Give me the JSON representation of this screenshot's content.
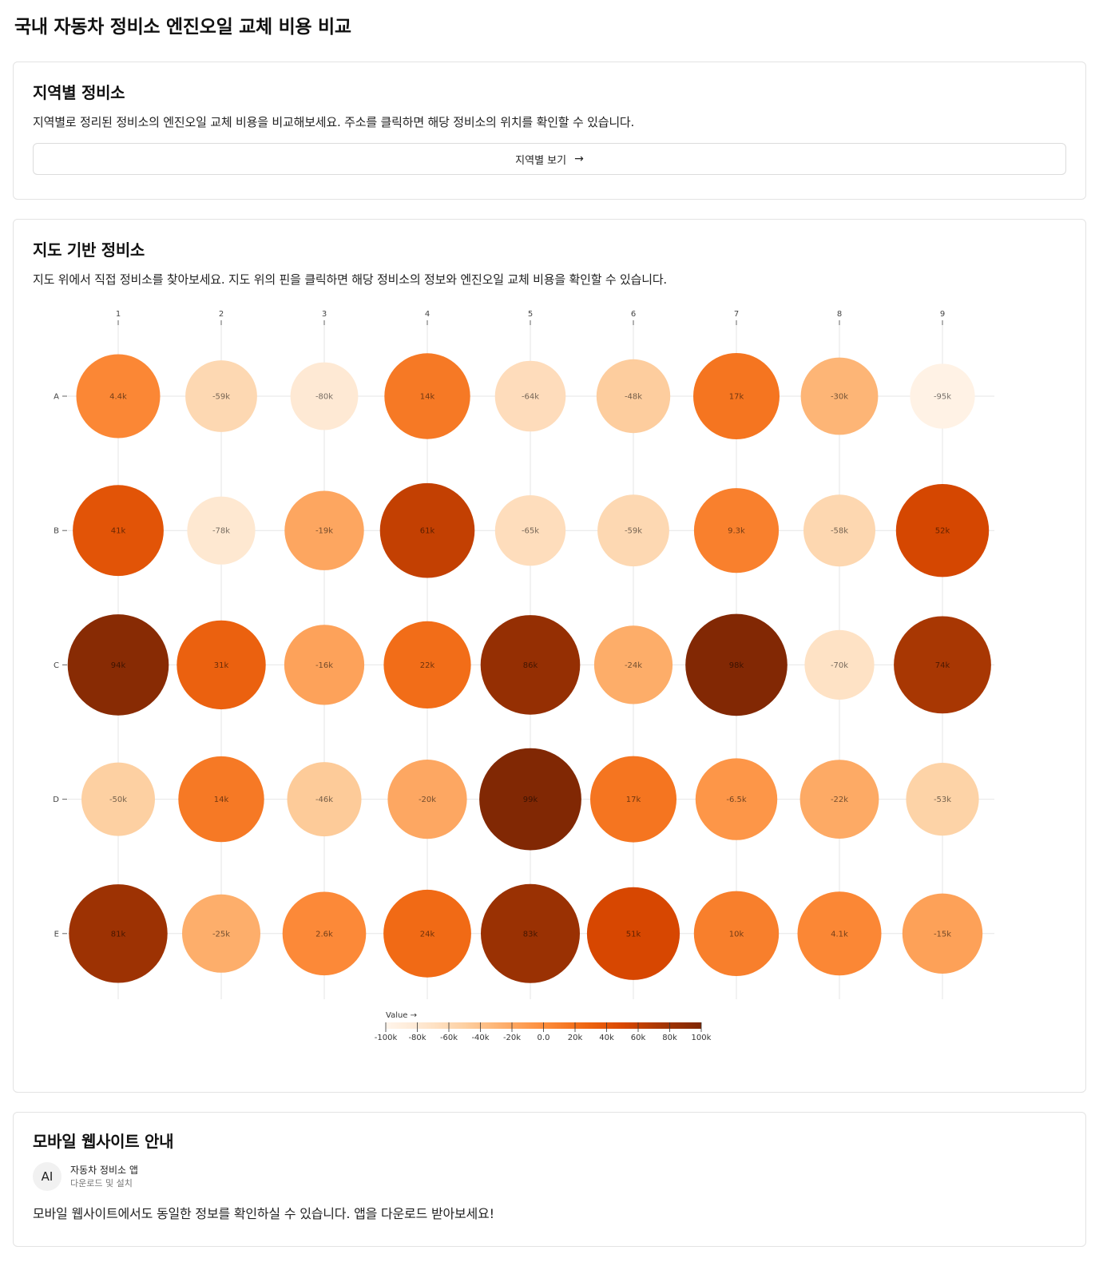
{
  "page": {
    "title": "국내 자동차 정비소 엔진오일 교체 비용 비교"
  },
  "region_card": {
    "title": "지역별 정비소",
    "description": "지역별로 정리된 정비소의 엔진오일 교체 비용을 비교해보세요. 주소를 클릭하면 해당 정비소의 위치를 확인할 수 있습니다.",
    "button_label": "지역별 보기",
    "button_icon": "arrow-right-icon"
  },
  "map_card": {
    "title": "지도 기반 정비소",
    "description": "지도 위에서 직접 정비소를 찾아보세요. 지도 위의 핀을 클릭하면 해당 정비소의 정보와 엔진오일 교체 비용을 확인할 수 있습니다."
  },
  "chart_data": {
    "type": "scatter",
    "columns": [
      "1",
      "2",
      "3",
      "4",
      "5",
      "6",
      "7",
      "8",
      "9"
    ],
    "rows": [
      "A",
      "B",
      "C",
      "D",
      "E"
    ],
    "values": [
      [
        4400,
        -59000,
        -80000,
        14000,
        -64000,
        -48000,
        17000,
        -30000,
        -95000
      ],
      [
        41000,
        -78000,
        -19000,
        61000,
        -65000,
        -59000,
        9300,
        -58000,
        52000
      ],
      [
        94000,
        31000,
        -16000,
        22000,
        86000,
        -24000,
        98000,
        -70000,
        74000
      ],
      [
        -50000,
        14000,
        -46000,
        -20000,
        99000,
        17000,
        -6500,
        -22000,
        -53000
      ],
      [
        81000,
        -25000,
        2600,
        24000,
        83000,
        51000,
        10000,
        4100,
        -15000
      ]
    ],
    "labels": [
      [
        "4.4k",
        "-59k",
        "-80k",
        "14k",
        "-64k",
        "-48k",
        "17k",
        "-30k",
        "-95k"
      ],
      [
        "41k",
        "-78k",
        "-19k",
        "61k",
        "-65k",
        "-59k",
        "9.3k",
        "-58k",
        "52k"
      ],
      [
        "94k",
        "31k",
        "-16k",
        "22k",
        "86k",
        "-24k",
        "98k",
        "-70k",
        "74k"
      ],
      [
        "-50k",
        "14k",
        "-46k",
        "-20k",
        "99k",
        "17k",
        "-6.5k",
        "-22k",
        "-53k"
      ],
      [
        "81k",
        "-25k",
        "2.6k",
        "24k",
        "83k",
        "51k",
        "10k",
        "4.1k",
        "-15k"
      ]
    ],
    "legend": {
      "title": "Value →",
      "domain": [
        -100000,
        100000
      ],
      "ticks": [
        "-100k",
        "-80k",
        "-60k",
        "-40k",
        "-20k",
        "0.0",
        "20k",
        "40k",
        "60k",
        "80k",
        "100k"
      ],
      "color_scheme": "oranges",
      "color_stops": [
        "#fff5eb",
        "#fee6ce",
        "#fdd0a2",
        "#fdae6b",
        "#fd8d3c",
        "#f16913",
        "#d94801",
        "#a63603",
        "#7f2704"
      ]
    },
    "grid": true
  },
  "mobile_card": {
    "title": "모바일 웹사이트 안내",
    "avatar": "AI",
    "app_name": "자동차 정비소 앱",
    "app_sub": "다운로드 및 설치",
    "description": "모바일 웹사이트에서도 동일한 정보를 확인하실 수 있습니다. 앱을 다운로드 받아보세요!"
  }
}
